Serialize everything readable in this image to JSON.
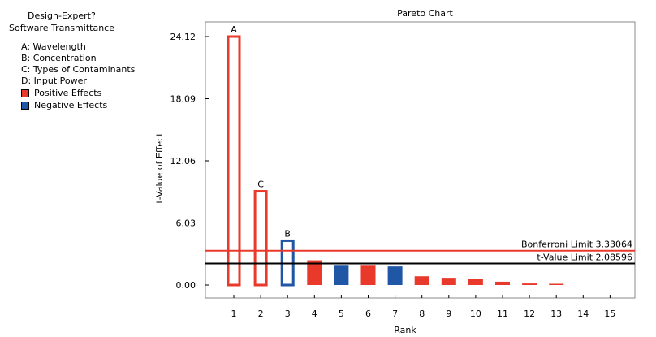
{
  "legend": {
    "title_line1": "Design-Expert?",
    "title_line2": "Software Transmittance",
    "factors": [
      "A: Wavelength",
      "B: Concentration",
      "C: Types of Contaminants",
      "D: Input Power"
    ],
    "positive_label": "Positive Effects",
    "negative_label": "Negative Effects",
    "positive_color": "#e8392a",
    "negative_color": "#1f56a6"
  },
  "chart_data": {
    "type": "bar",
    "title": "Pareto Chart",
    "xlabel": "Rank",
    "ylabel": "t-Value of Effect",
    "ylim": [
      0,
      24.12
    ],
    "yticks": [
      "0.00",
      "6.03",
      "12.06",
      "18.09",
      "24.12"
    ],
    "categories": [
      "1",
      "2",
      "3",
      "4",
      "5",
      "6",
      "7",
      "8",
      "9",
      "10",
      "11",
      "12",
      "13",
      "14",
      "15"
    ],
    "values": [
      24.12,
      9.1,
      4.3,
      2.4,
      1.95,
      1.95,
      1.8,
      0.85,
      0.7,
      0.62,
      0.32,
      0.15,
      0.12,
      null,
      null
    ],
    "signs": [
      "positive",
      "positive",
      "negative",
      "positive",
      "negative",
      "positive",
      "negative",
      "positive",
      "positive",
      "positive",
      "positive",
      "positive",
      "positive",
      null,
      null
    ],
    "bar_labels": [
      "A",
      "C",
      "B",
      "",
      "",
      "",
      "",
      "",
      "",
      "",
      "",
      "",
      "",
      "",
      ""
    ],
    "hollow": [
      true,
      true,
      true,
      false,
      false,
      false,
      false,
      false,
      false,
      false,
      false,
      false,
      false,
      false,
      false
    ],
    "reference_lines": [
      {
        "label": "Bonferroni Limit 3.33064",
        "value": 3.33064,
        "color": "#e8392a"
      },
      {
        "label": "t-Value Limit 2.08596",
        "value": 2.08596,
        "color": "#000000"
      }
    ]
  }
}
